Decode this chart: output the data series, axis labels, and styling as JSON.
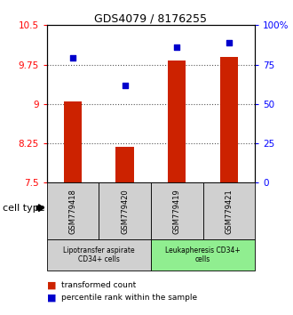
{
  "title": "GDS4079 / 8176255",
  "samples": [
    "GSM779418",
    "GSM779420",
    "GSM779419",
    "GSM779421"
  ],
  "bar_values": [
    9.05,
    8.18,
    9.83,
    9.9
  ],
  "dot_values": [
    79,
    62,
    86,
    89
  ],
  "y_min": 7.5,
  "y_max": 10.5,
  "y_ticks_left": [
    7.5,
    8.25,
    9.0,
    9.75,
    10.5
  ],
  "y_ticks_right": [
    0,
    25,
    50,
    75,
    100
  ],
  "bar_color": "#cc2200",
  "dot_color": "#0000cc",
  "group1_label": "Lipotransfer aspirate\nCD34+ cells",
  "group2_label": "Leukapheresis CD34+\ncells",
  "group1_color": "#d0d0d0",
  "group2_color": "#90ee90",
  "cell_type_label": "cell type",
  "legend_bar": "transformed count",
  "legend_dot": "percentile rank within the sample",
  "dotted_line_color": "#555555"
}
